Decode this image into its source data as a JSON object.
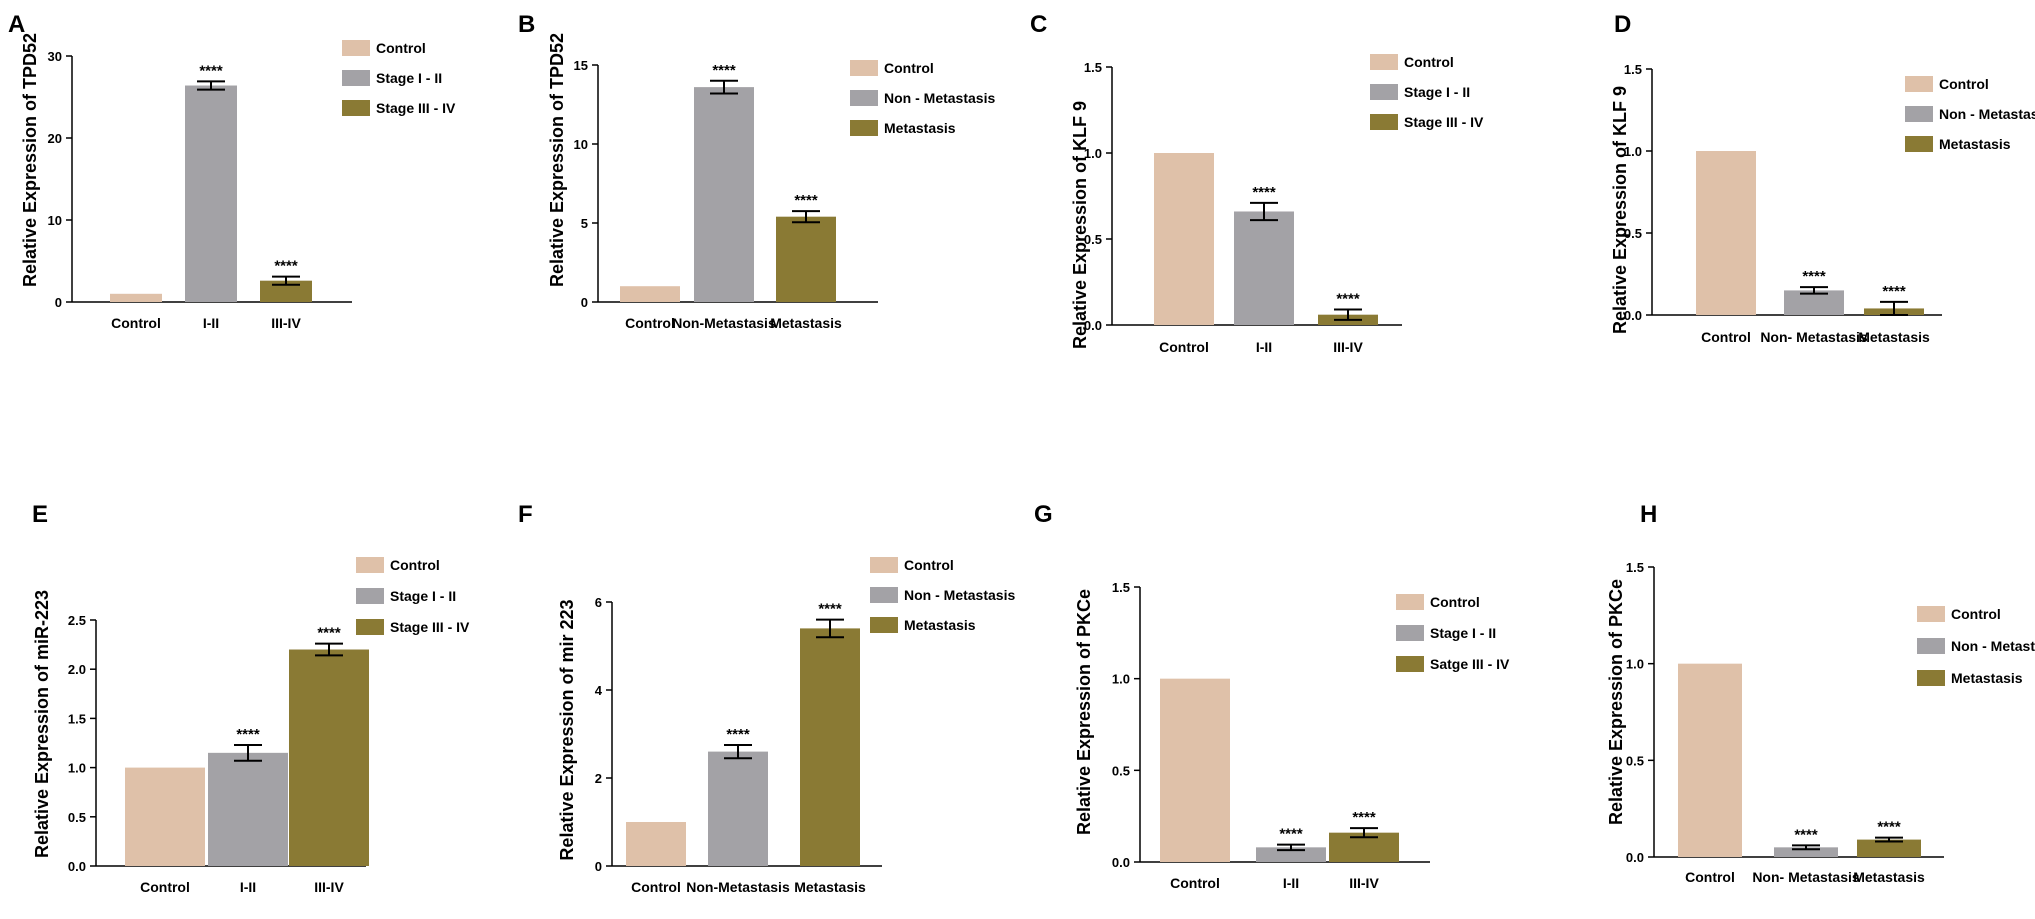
{
  "colors": {
    "control": "#dfc1a9",
    "early": "#a3a2a6",
    "late": "#8a7a34",
    "axis": "#000000"
  },
  "chart_data": [
    {
      "panel_label": "A",
      "type": "bar",
      "ylabel": "Relative Expression of TPD52",
      "categories": [
        "Control",
        "I-II",
        "III-IV"
      ],
      "values": [
        1,
        26.4,
        2.6
      ],
      "errors": [
        0,
        0.5,
        0.5
      ],
      "significance": [
        "",
        "****",
        "****"
      ],
      "ylim": [
        0,
        30
      ],
      "yticks": [
        0,
        10,
        20,
        30
      ],
      "ytick_labels": [
        "0",
        "10",
        "20",
        "30"
      ],
      "legend": [
        "Control",
        "Stage I - II",
        "Stage III - IV"
      ]
    },
    {
      "panel_label": "B",
      "type": "bar",
      "ylabel": "Relative Expression of TPD52",
      "categories": [
        "Control",
        "Non-Metastasis",
        "Metastasis"
      ],
      "values": [
        1,
        13.6,
        5.4
      ],
      "errors": [
        0,
        0.4,
        0.35
      ],
      "significance": [
        "",
        "****",
        "****"
      ],
      "ylim": [
        0,
        15
      ],
      "yticks": [
        0,
        5,
        10,
        15
      ],
      "ytick_labels": [
        "0",
        "5",
        "10",
        "15"
      ],
      "legend": [
        "Control",
        "Non - Metastasis",
        "Metastasis"
      ]
    },
    {
      "panel_label": "C",
      "type": "bar",
      "ylabel": "Relative Expression of KLF 9",
      "categories": [
        "Control",
        "I-II",
        "III-IV"
      ],
      "values": [
        1.0,
        0.66,
        0.06
      ],
      "errors": [
        0,
        0.05,
        0.03
      ],
      "significance": [
        "",
        "****",
        "****"
      ],
      "ylim": [
        0,
        1.5
      ],
      "yticks": [
        0,
        0.5,
        1.0,
        1.5
      ],
      "ytick_labels": [
        "0.0",
        "0.5",
        "1.0",
        "1.5"
      ],
      "legend": [
        "Control",
        "Stage I - II",
        "Stage III - IV"
      ]
    },
    {
      "panel_label": "D",
      "type": "bar",
      "ylabel": "Relative Expression of KLF 9",
      "categories": [
        "Control",
        "Non- Metastasis",
        "Metastasis"
      ],
      "values": [
        1.0,
        0.15,
        0.04
      ],
      "errors": [
        0,
        0.02,
        0.04
      ],
      "significance": [
        "",
        "****",
        "****"
      ],
      "ylim": [
        0,
        1.5
      ],
      "yticks": [
        0,
        0.5,
        1.0,
        1.5
      ],
      "ytick_labels": [
        "0.0",
        "0.5",
        "1.0",
        "1.5"
      ],
      "legend": [
        "Control",
        "Non - Metastasis",
        "Metastasis"
      ]
    },
    {
      "panel_label": "E",
      "type": "bar",
      "ylabel": "Relative Expression of miR-223",
      "categories": [
        "Control",
        "I-II",
        "III-IV"
      ],
      "values": [
        1.0,
        1.15,
        2.2
      ],
      "errors": [
        0,
        0.08,
        0.06
      ],
      "significance": [
        "",
        "****",
        "****"
      ],
      "ylim": [
        0,
        2.5
      ],
      "yticks": [
        0,
        0.5,
        1.0,
        1.5,
        2.0,
        2.5
      ],
      "ytick_labels": [
        "0.0",
        "0.5",
        "1.0",
        "1.5",
        "2.0",
        "2.5"
      ],
      "legend": [
        "Control",
        "Stage I - II",
        "Stage III - IV"
      ]
    },
    {
      "panel_label": "F",
      "type": "bar",
      "ylabel": "Relative Expression of mir 223",
      "categories": [
        "Control",
        "Non-Metastasis",
        "Metastasis"
      ],
      "values": [
        1.0,
        2.6,
        5.4
      ],
      "errors": [
        0,
        0.15,
        0.2
      ],
      "significance": [
        "",
        "****",
        "****"
      ],
      "ylim": [
        0,
        6
      ],
      "yticks": [
        0,
        2,
        4,
        6
      ],
      "ytick_labels": [
        "0",
        "2",
        "4",
        "6"
      ],
      "legend": [
        "Control",
        "Non - Metastasis",
        "Metastasis"
      ]
    },
    {
      "panel_label": "G",
      "type": "bar",
      "ylabel": "Relative  Expression of PKCe",
      "categories": [
        "Control",
        "I-II",
        "III-IV"
      ],
      "values": [
        1.0,
        0.08,
        0.16
      ],
      "errors": [
        0,
        0.015,
        0.025
      ],
      "significance": [
        "",
        "****",
        "****"
      ],
      "ylim": [
        0,
        1.5
      ],
      "yticks": [
        0,
        0.5,
        1.0,
        1.5
      ],
      "ytick_labels": [
        "0.0",
        "0.5",
        "1.0",
        "1.5"
      ],
      "legend": [
        "Control",
        "Stage I - II",
        "Satge III - IV"
      ]
    },
    {
      "panel_label": "H",
      "type": "bar",
      "ylabel": "Relative Expression of PKCe",
      "categories": [
        "Control",
        "Non- Metastasis",
        "Metastasis"
      ],
      "values": [
        1.0,
        0.05,
        0.09
      ],
      "errors": [
        0,
        0.01,
        0.01
      ],
      "significance": [
        "",
        "****",
        "****"
      ],
      "ylim": [
        0,
        1.5
      ],
      "yticks": [
        0,
        0.5,
        1.0,
        1.5
      ],
      "ytick_labels": [
        "0.0",
        "0.5",
        "1.0",
        "1.5"
      ],
      "legend": [
        "Control",
        "Non - Metastasis",
        "Metastasis"
      ]
    }
  ]
}
